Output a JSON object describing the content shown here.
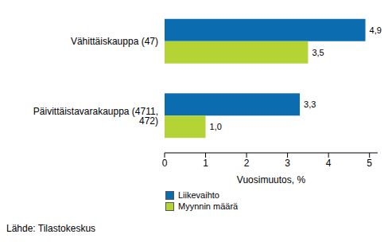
{
  "chart_data": {
    "type": "bar",
    "orientation": "horizontal",
    "categories": [
      "Vähittäiskauppa (47)",
      "Päivittäistavarakauppa (4711, 472)"
    ],
    "series": [
      {
        "name": "Liikevaihto",
        "color": "#0b6cb0",
        "values": [
          4.9,
          3.3
        ],
        "value_labels": [
          "4,9",
          "3,3"
        ]
      },
      {
        "name": "Myynnin määrä",
        "color": "#b4d335",
        "values": [
          3.5,
          1.0
        ],
        "value_labels": [
          "3,5",
          "1,0"
        ]
      }
    ],
    "x_label": "Vuosimuutos, %",
    "xlim": [
      0,
      5.2
    ],
    "xticks": [
      0,
      1,
      2,
      3,
      4,
      5
    ],
    "grid": false,
    "data_labels": true,
    "legend": "bottom",
    "source": "Lähde: Tilastokeskus"
  }
}
